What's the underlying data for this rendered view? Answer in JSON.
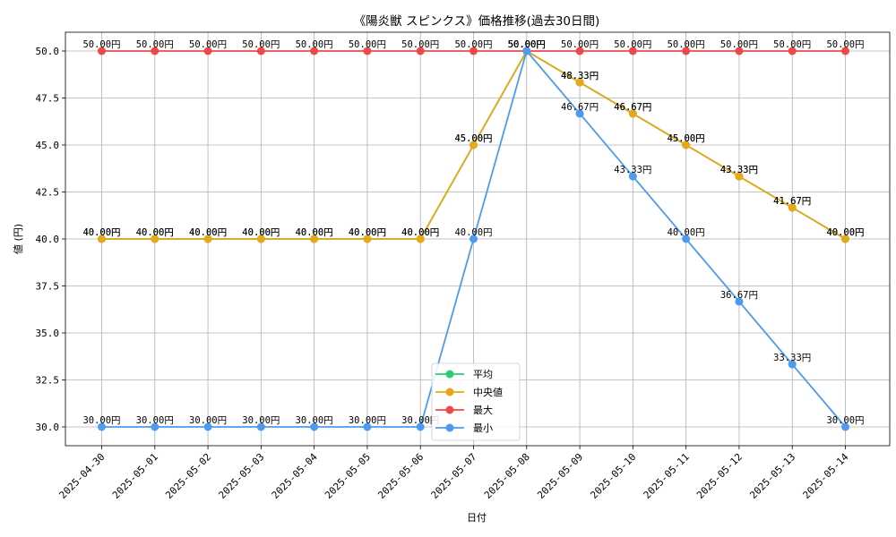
{
  "chart_data": {
    "type": "line",
    "title": "《陽炎獣 スピンクス》価格推移(過去30日間)",
    "xlabel": "日付",
    "ylabel": "値 (円)",
    "ylim": [
      29.0,
      51.0
    ],
    "yticks": [
      "30.0",
      "32.5",
      "35.0",
      "37.5",
      "40.0",
      "42.5",
      "45.0",
      "47.5",
      "50.0"
    ],
    "ytick_values": [
      30.0,
      32.5,
      35.0,
      37.5,
      40.0,
      42.5,
      45.0,
      47.5,
      50.0
    ],
    "categories": [
      "2025-04-30",
      "2025-05-01",
      "2025-05-02",
      "2025-05-03",
      "2025-05-04",
      "2025-05-05",
      "2025-05-06",
      "2025-05-07",
      "2025-05-08",
      "2025-05-09",
      "2025-05-10",
      "2025-05-11",
      "2025-05-12",
      "2025-05-13",
      "2025-05-14"
    ],
    "grid": true,
    "legend_position": "lower-center",
    "series": [
      {
        "name": "平均",
        "color": "#2ecc71",
        "values": [
          40.0,
          40.0,
          40.0,
          40.0,
          40.0,
          40.0,
          40.0,
          45.0,
          50.0,
          48.33,
          46.67,
          45.0,
          43.33,
          41.67,
          40.0
        ],
        "labels": [
          "40.00円",
          "40.00円",
          "40.00円",
          "40.00円",
          "40.00円",
          "40.00円",
          "40.00円",
          "45.00円",
          "50.00円",
          "48.33円",
          "46.67円",
          "45.00円",
          "43.33円",
          "41.67円",
          "40.00円"
        ]
      },
      {
        "name": "中央値",
        "color": "#e6a817",
        "values": [
          40.0,
          40.0,
          40.0,
          40.0,
          40.0,
          40.0,
          40.0,
          45.0,
          50.0,
          48.33,
          46.67,
          45.0,
          43.33,
          41.67,
          40.0
        ],
        "labels": [
          "40.00円",
          "40.00円",
          "40.00円",
          "40.00円",
          "40.00円",
          "40.00円",
          "40.00円",
          "45.00円",
          "50.00円",
          "48.33円",
          "46.67円",
          "45.00円",
          "43.33円",
          "41.67円",
          "40.00円"
        ]
      },
      {
        "name": "最大",
        "color": "#f04848",
        "values": [
          50.0,
          50.0,
          50.0,
          50.0,
          50.0,
          50.0,
          50.0,
          50.0,
          50.0,
          50.0,
          50.0,
          50.0,
          50.0,
          50.0,
          50.0
        ],
        "labels": [
          "50.00円",
          "50.00円",
          "50.00円",
          "50.00円",
          "50.00円",
          "50.00円",
          "50.00円",
          "50.00円",
          "50.00円",
          "50.00円",
          "50.00円",
          "50.00円",
          "50.00円",
          "50.00円",
          "50.00円"
        ]
      },
      {
        "name": "最小",
        "color": "#4c9bf0",
        "values": [
          30.0,
          30.0,
          30.0,
          30.0,
          30.0,
          30.0,
          30.0,
          40.0,
          50.0,
          46.67,
          43.33,
          40.0,
          36.67,
          33.33,
          30.0
        ],
        "labels": [
          "30.00円",
          "30.00円",
          "30.00円",
          "30.00円",
          "30.00円",
          "30.00円",
          "30.00円",
          "40.00円",
          "50.00円",
          "46.67円",
          "43.33円",
          "40.00円",
          "36.67円",
          "33.33円",
          "30.00円"
        ]
      }
    ]
  }
}
